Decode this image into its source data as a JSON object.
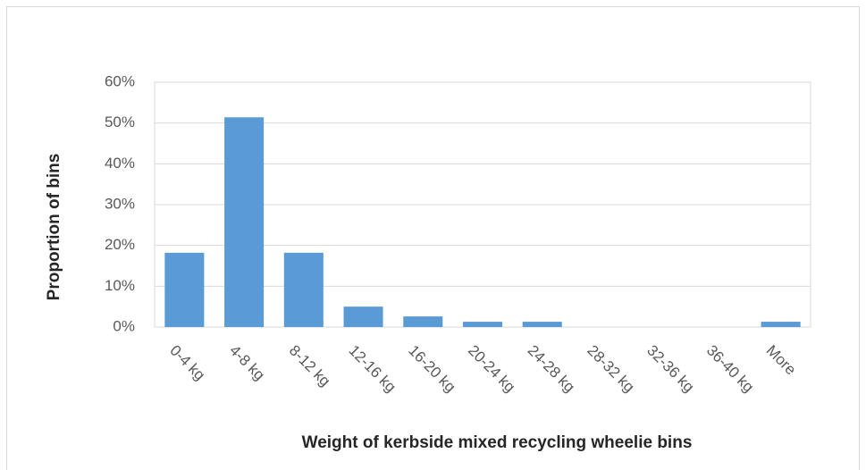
{
  "chart_data": {
    "type": "bar",
    "x_label": "Weight of kerbside mixed recycling wheelie bins",
    "y_label": "Proportion of bins",
    "categories": [
      "0-4 kg",
      "4-8 kg",
      "8-12 kg",
      "12-16 kg",
      "16-20 kg",
      "20-24 kg",
      "24-28 kg",
      "28-32 kg",
      "32-36 kg",
      "36-40 kg",
      "More"
    ],
    "values": [
      18.2,
      51.4,
      18.2,
      5.0,
      2.6,
      1.3,
      1.3,
      0,
      0,
      0,
      1.3
    ],
    "color": "#5b9bd5",
    "ylim": [
      0,
      60
    ],
    "yticks": [
      {
        "value": 0,
        "label": "0%"
      },
      {
        "value": 10,
        "label": "10%"
      },
      {
        "value": 20,
        "label": "20%"
      },
      {
        "value": 30,
        "label": "30%"
      },
      {
        "value": 40,
        "label": "40%"
      },
      {
        "value": 50,
        "label": "50%"
      },
      {
        "value": 60,
        "label": "60%"
      }
    ],
    "grid": true
  }
}
